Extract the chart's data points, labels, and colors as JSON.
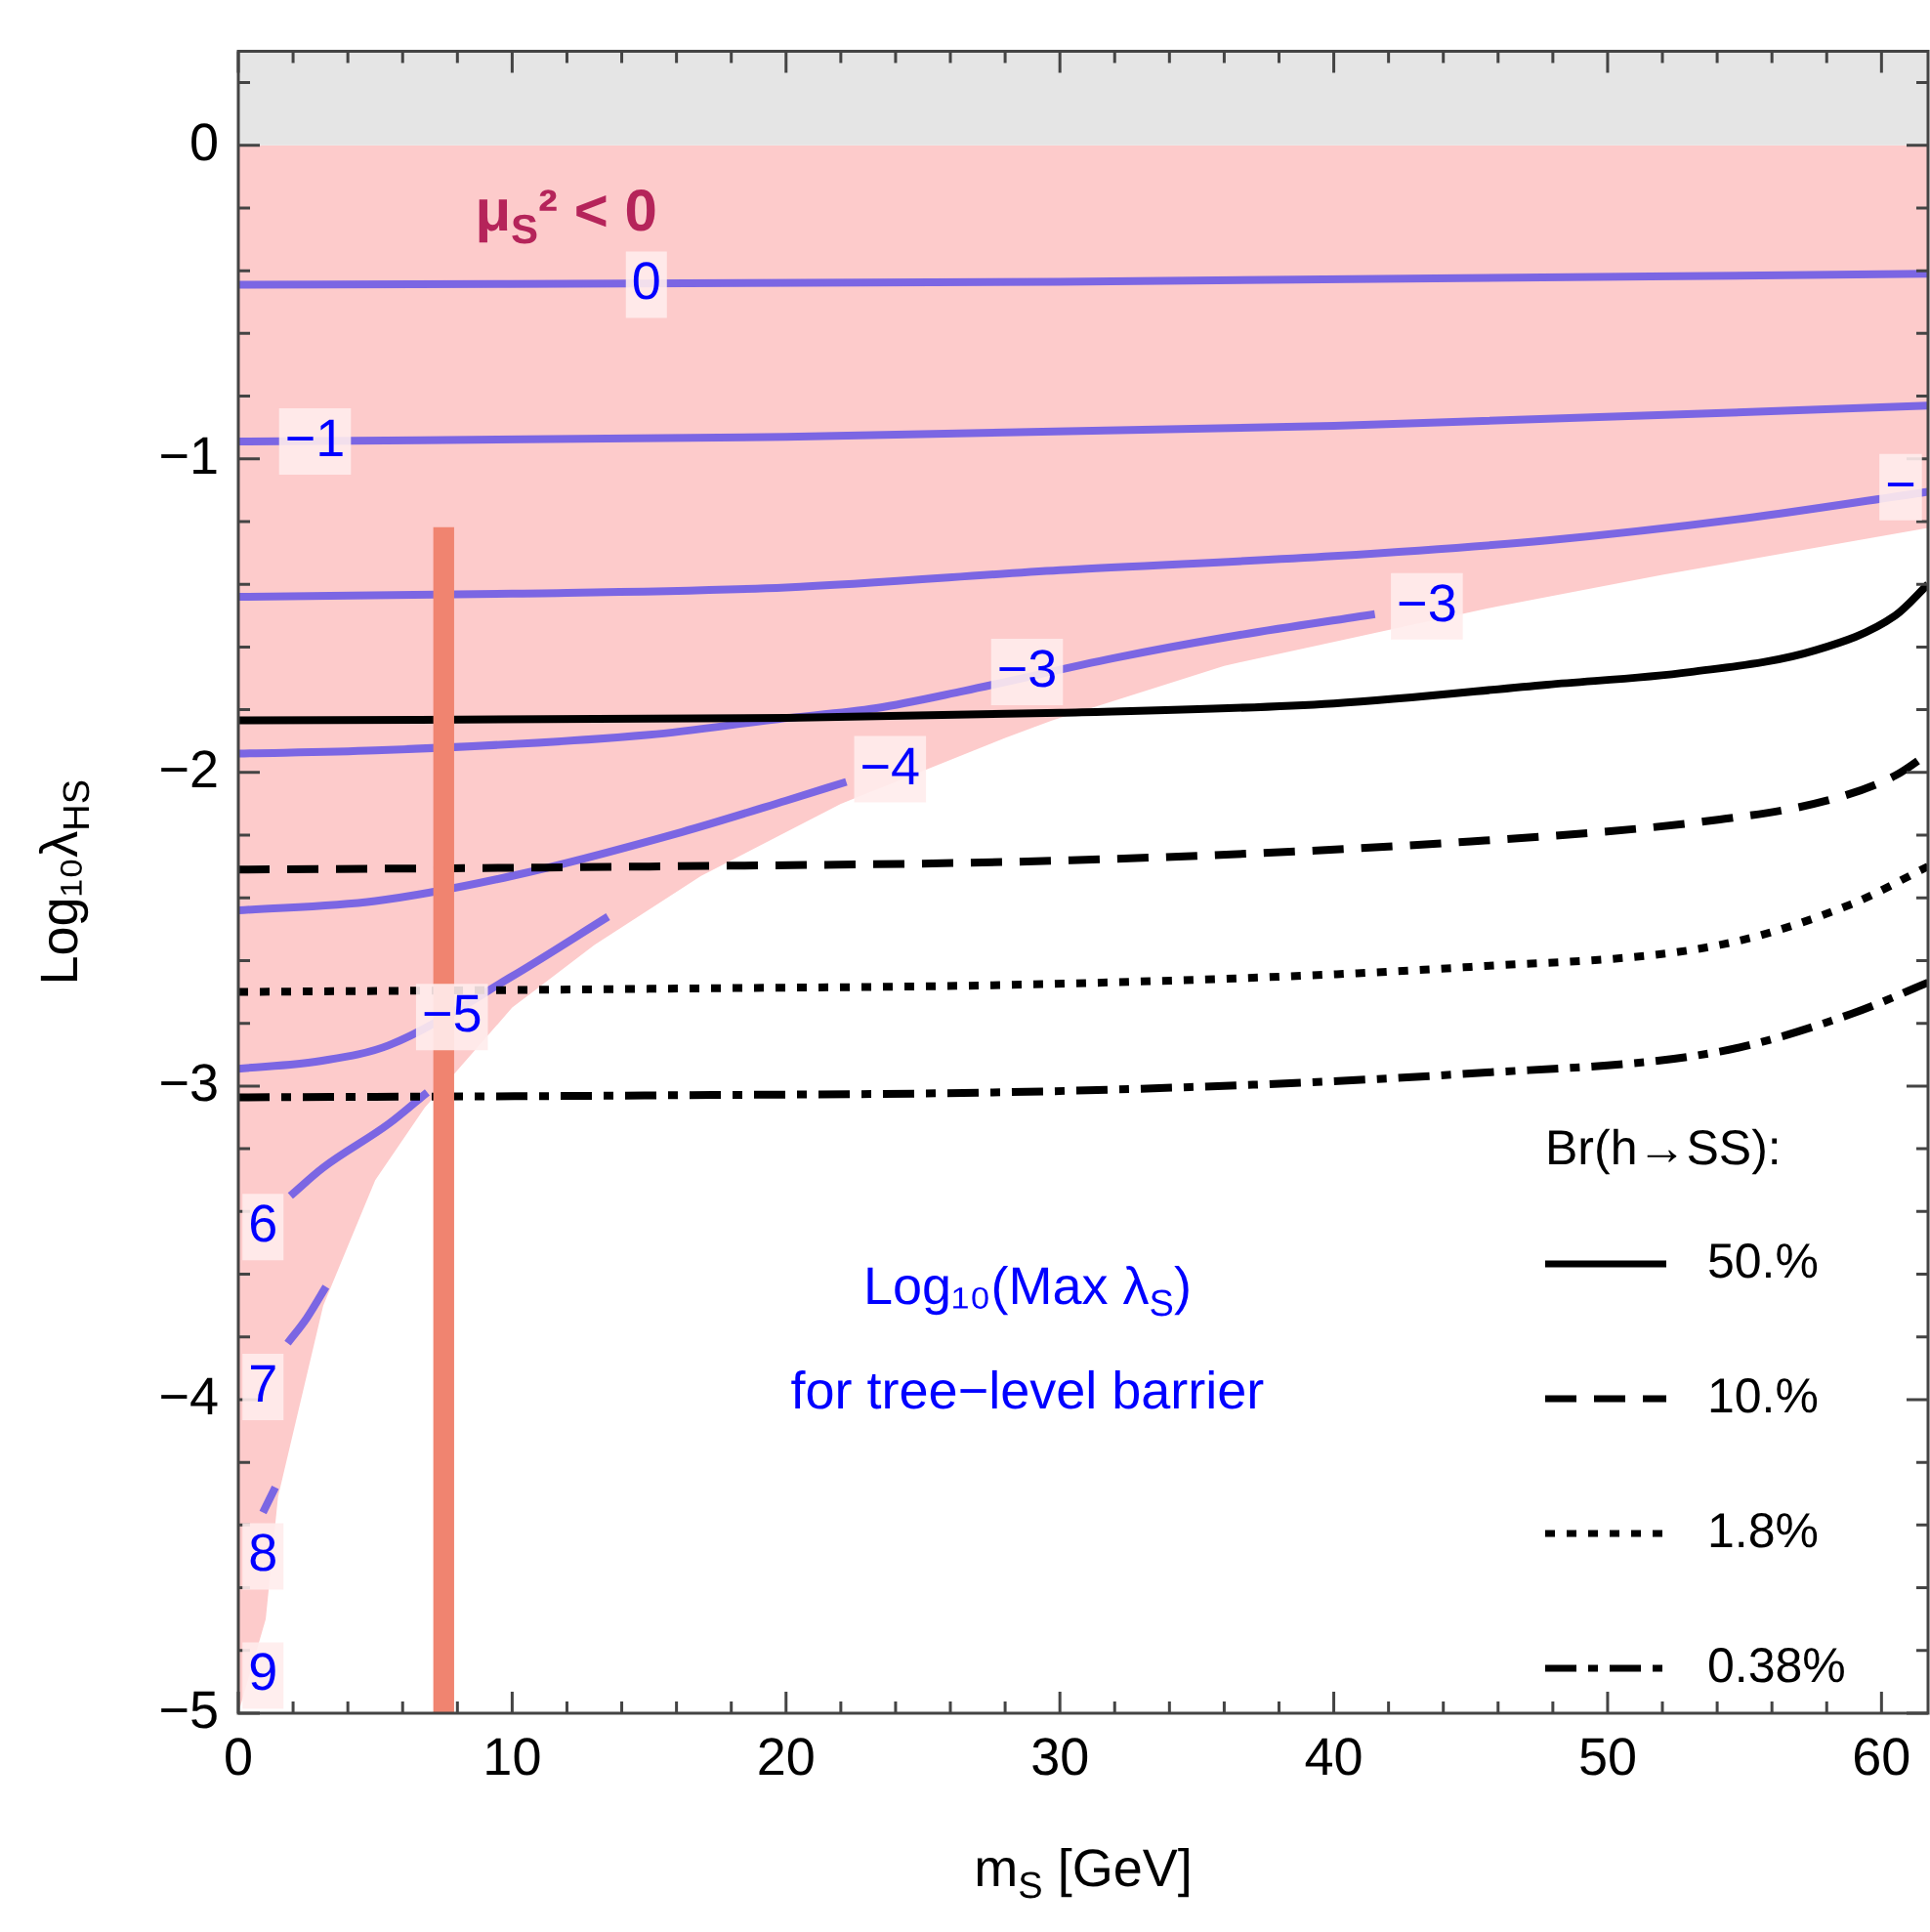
{
  "chart_data": {
    "type": "line",
    "xlabel": "m$_{S}$ [GeV]",
    "ylabel": "Log₁₀λ$_{HS}$",
    "legend_title": "Br(h→SS):",
    "legend": "bottom right",
    "xlim": [
      0,
      61.7
    ],
    "ylim": [
      -5,
      0.3
    ],
    "xticks": [
      0,
      {
        "value": 2,
        "label": null
      },
      {
        "value": 4,
        "label": null
      },
      {
        "value": 6,
        "label": null
      },
      {
        "value": 8,
        "label": null
      },
      10,
      {
        "value": 12,
        "label": null
      },
      {
        "value": 14,
        "label": null
      },
      {
        "value": 16,
        "label": null
      },
      {
        "value": 18,
        "label": null
      },
      20,
      {
        "value": 22,
        "label": null
      },
      {
        "value": 24,
        "label": null
      },
      {
        "value": 26,
        "label": null
      },
      {
        "value": 28,
        "label": null
      },
      30,
      {
        "value": 32,
        "label": null
      },
      {
        "value": 34,
        "label": null
      },
      {
        "value": 36,
        "label": null
      },
      {
        "value": 38,
        "label": null
      },
      40,
      {
        "value": 42,
        "label": null
      },
      {
        "value": 44,
        "label": null
      },
      {
        "value": 46,
        "label": null
      },
      {
        "value": 48,
        "label": null
      },
      50,
      {
        "value": 52,
        "label": null
      },
      {
        "value": 54,
        "label": null
      },
      {
        "value": 56,
        "label": null
      },
      {
        "value": 58,
        "label": null
      },
      60
    ],
    "yticks": [
      {
        "value": -5,
        "label": "−5"
      },
      {
        "value": -4.8,
        "label": null
      },
      {
        "value": -4.6,
        "label": null
      },
      {
        "value": -4.4,
        "label": null
      },
      {
        "value": -4.2,
        "label": null
      },
      {
        "value": -4,
        "label": "−4"
      },
      {
        "value": -3.8,
        "label": null
      },
      {
        "value": -3.6,
        "label": null
      },
      {
        "value": -3.4,
        "label": null
      },
      {
        "value": -3.2,
        "label": null
      },
      {
        "value": -3,
        "label": "−3"
      },
      {
        "value": -2.8,
        "label": null
      },
      {
        "value": -2.6,
        "label": null
      },
      {
        "value": -2.4,
        "label": null
      },
      {
        "value": -2.2,
        "label": null
      },
      {
        "value": -2,
        "label": "−2"
      },
      {
        "value": -1.8,
        "label": null
      },
      {
        "value": -1.6,
        "label": null
      },
      {
        "value": -1.4,
        "label": null
      },
      {
        "value": -1.2,
        "label": null
      },
      {
        "value": -1,
        "label": "−1"
      },
      {
        "value": -0.8,
        "label": null
      },
      {
        "value": -0.6,
        "label": null
      },
      {
        "value": -0.4,
        "label": null
      },
      {
        "value": -0.2,
        "label": null
      },
      0,
      {
        "value": 0.2,
        "label": null
      }
    ],
    "bands": [
      {
        "axis": "y",
        "from": 0,
        "to": 0.3,
        "color": "#e5e5e5"
      }
    ],
    "series": [
      {
        "type": "area",
        "color": "#fdcbcb",
        "x": [
          0,
          1.0,
          1.45,
          3.1,
          5,
          6.8,
          10,
          13,
          16.9,
          22,
          28,
          29.7,
          36,
          46,
          52,
          61.7
        ],
        "values": [
          -5,
          -4.7,
          -4.31,
          -3.7,
          -3.3,
          -3.07,
          -2.75,
          -2.55,
          -2.33,
          -2.1,
          -1.89,
          -1.835,
          -1.66,
          -1.47,
          -1.37,
          -1.22
        ]
      },
      {
        "color": "#7b66e3",
        "x": [
          0,
          30,
          61.7
        ],
        "values": [
          -0.445,
          -0.435,
          -0.41
        ]
      },
      {
        "color": "#7b66e3",
        "x": [
          0,
          20,
          40,
          61.7
        ],
        "values": [
          -0.945,
          -0.93,
          -0.895,
          -0.83
        ]
      },
      {
        "color": "#7b66e3",
        "x": [
          0,
          10,
          20,
          30,
          40,
          47.8,
          55,
          61.7
        ],
        "values": [
          -1.44,
          -1.43,
          -1.41,
          -1.355,
          -1.31,
          -1.26,
          -1.19,
          -1.105
        ]
      },
      {
        "color": "#7b66e3",
        "x": [
          0,
          5,
          15,
          19.7,
          23.3,
          26.5,
          32,
          36,
          41.5
        ],
        "values": [
          -1.94,
          -1.93,
          -1.88,
          -1.83,
          -1.795,
          -1.74,
          -1.635,
          -1.57,
          -1.495
        ]
      },
      {
        "color": "#7b66e3",
        "x": [
          0,
          5,
          10,
          16.2,
          20,
          22.2
        ],
        "values": [
          -2.44,
          -2.41,
          -2.33,
          -2.19,
          -2.09,
          -2.03
        ]
      },
      {
        "color": "#7b66e3",
        "x": [
          0,
          3,
          5.5,
          10,
          13.5
        ],
        "values": [
          -2.945,
          -2.92,
          -2.87,
          -2.65,
          -2.46
        ]
      },
      {
        "color": "#7b66e3",
        "x": [
          1.9,
          3.1,
          5.5,
          6.9
        ],
        "values": [
          -3.35,
          -3.26,
          -3.12,
          -3.02
        ]
      },
      {
        "color": "#7b66e3",
        "x": [
          1.8,
          2.5,
          3.2
        ],
        "values": [
          -3.82,
          -3.74,
          -3.64
        ]
      },
      {
        "color": "#7b66e3",
        "x": [
          0.9,
          1.35
        ],
        "values": [
          -4.36,
          -4.28
        ]
      },
      {
        "name": "50.%",
        "color": "#000000",
        "line_style": "solid",
        "x": [
          0,
          20,
          30,
          40,
          47.8,
          53,
          57.6,
          60.5,
          61.7
        ],
        "values": [
          -1.834,
          -1.826,
          -1.81,
          -1.78,
          -1.72,
          -1.68,
          -1.61,
          -1.5,
          -1.4
        ]
      },
      {
        "name": "10.%",
        "color": "#000000",
        "line_style": "dashed",
        "x": [
          0,
          15,
          30.4,
          45,
          54.1,
          58,
          60.5,
          61.7
        ],
        "values": [
          -2.31,
          -2.3,
          -2.28,
          -2.22,
          -2.15,
          -2.09,
          -2.01,
          -1.94
        ]
      },
      {
        "name": "1.8%",
        "color": "#000000",
        "line_style": "dotted",
        "x": [
          0,
          15,
          30.4,
          45,
          54.1,
          58.9,
          61.7
        ],
        "values": [
          -2.7,
          -2.69,
          -2.673,
          -2.62,
          -2.55,
          -2.42,
          -2.3
        ]
      },
      {
        "name": "0.38%",
        "color": "#000000",
        "line_style": "dashdot",
        "x": [
          0,
          15,
          30.4,
          45,
          54.1,
          58.9,
          61.7
        ],
        "values": [
          -3.036,
          -3.03,
          -3.015,
          -2.96,
          -2.89,
          -2.77,
          -2.67
        ]
      },
      {
        "type": "bar",
        "color": "#f08470",
        "x": [
          7.5
        ],
        "base": [
          -5
        ],
        "values": [
          3.78
        ]
      }
    ],
    "annotations": [
      "μ$_{S}$² < 0",
      "Log₁₀(Max λ$_{S}$)",
      "for tree−level barrier",
      {
        "text": "0",
        "x": 14.9,
        "y": -0.445
      },
      {
        "text": "−1",
        "x": 2.8,
        "y": -0.945
      },
      {
        "text": "−",
        "x": 60.7,
        "y": -1.09
      },
      {
        "text": "−3",
        "x": 28.8,
        "y": -1.68
      },
      {
        "text": "−3",
        "x": 43.4,
        "y": -1.47
      },
      {
        "text": "−4",
        "x": 23.8,
        "y": -1.99
      },
      {
        "text": "−5",
        "x": 7.8,
        "y": -2.78
      },
      {
        "text": "6",
        "x": 0.9,
        "y": -3.45
      },
      {
        "text": "7",
        "x": 0.9,
        "y": -3.96
      },
      {
        "text": "8",
        "x": 0.9,
        "y": -4.5
      },
      {
        "text": "9",
        "x": 0.9,
        "y": -4.88
      }
    ]
  }
}
